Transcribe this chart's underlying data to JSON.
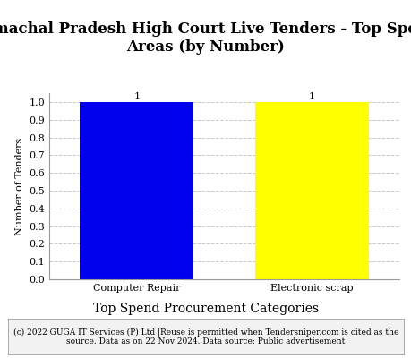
{
  "title": "Himachal Pradesh High Court Live Tenders - Top Spend\nAreas (by Number)",
  "categories": [
    "Computer Repair",
    "Electronic scrap"
  ],
  "values": [
    1,
    1
  ],
  "bar_colors": [
    "#0000EE",
    "#FFFF00"
  ],
  "xlabel": "Top Spend Procurement Categories",
  "ylabel": "Number of Tenders",
  "ylim": [
    0.0,
    1.0
  ],
  "yticks": [
    0.0,
    0.1,
    0.2,
    0.3,
    0.4,
    0.5,
    0.6,
    0.7,
    0.8,
    0.9,
    1.0
  ],
  "bar_labels": [
    "1",
    "1"
  ],
  "footnote": "(c) 2022 GUGA IT Services (P) Ltd |Reuse is permitted when Tendersniper.com is cited as the\nsource. Data as on 22 Nov 2024. Data source: Public advertisement",
  "title_fontsize": 12,
  "xlabel_fontsize": 10,
  "ylabel_fontsize": 8,
  "tick_fontsize": 8,
  "footnote_fontsize": 6.5,
  "bar_label_fontsize": 8,
  "background_color": "#FFFFFF",
  "grid_color": "#BBBBBB",
  "footnote_bg": "#F2F2F2",
  "bar_width": 0.65,
  "x_positions": [
    0,
    1
  ]
}
